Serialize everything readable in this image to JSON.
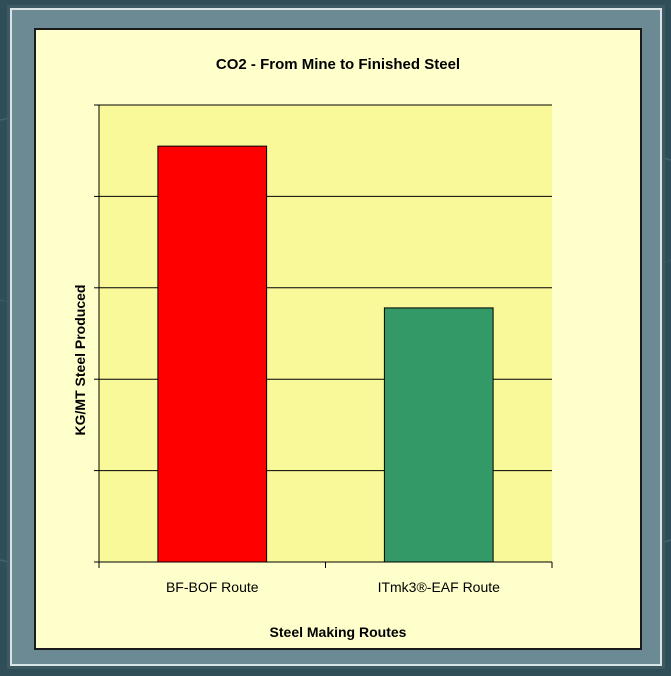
{
  "colors": {
    "background": "#2f4e58",
    "frame": "#6b8a94",
    "plot_area": "#f9f99a",
    "gridline": "#000000"
  },
  "chart_data": {
    "type": "bar",
    "title": "CO2 - From Mine to Finished Steel",
    "xlabel": "Steel Making Routes",
    "ylabel": "KG/MT Steel Produced",
    "categories": [
      "BF-BOF Route",
      "ITmk3®-EAF Route"
    ],
    "values": [
      4.55,
      2.78
    ],
    "bar_colors": [
      "#ff0000",
      "#339966"
    ],
    "ylim": [
      0,
      5
    ],
    "grid": true,
    "y_tick_labels_shown": false
  }
}
